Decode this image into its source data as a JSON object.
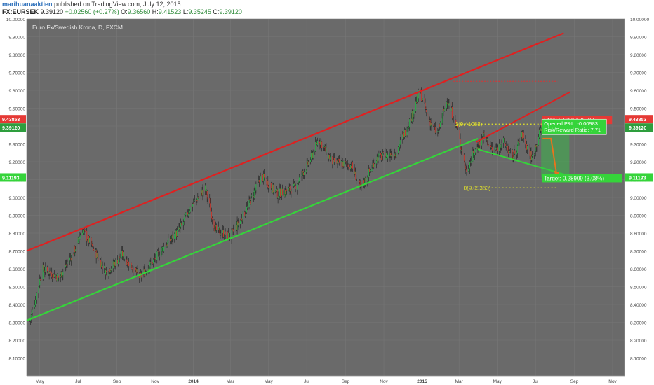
{
  "header": {
    "author": "marihuanaaktien",
    "published": "published on TradingView.com, July 12, 2015",
    "symbol": "FX:EURSEK",
    "last": "9.39120",
    "change": "+0.02560 (+0.27%)",
    "o_label": "O:",
    "o_val": "9.36560",
    "h_label": "H:",
    "h_val": "9.41523",
    "l_label": "L:",
    "l_val": "9.35245",
    "c_label": "C:",
    "c_val": "9.39120"
  },
  "chart_data": {
    "type": "line",
    "title": "Euro Fx/Swedish Krona, D, FXCM",
    "colors": {
      "background": "#6a6a6a",
      "up": "#2ea84a",
      "down": "#c23a30",
      "resistance": "#e02020",
      "support": "#35d43a",
      "fib": "#e6e62a"
    },
    "ylim": [
      8.0,
      10.0
    ],
    "y_ticks": [
      "8.10000",
      "8.20000",
      "8.30000",
      "8.40000",
      "8.50000",
      "8.60000",
      "8.70000",
      "8.80000",
      "8.90000",
      "9.00000",
      "9.10000",
      "9.20000",
      "9.30000",
      "9.40000",
      "9.50000",
      "9.60000",
      "9.70000",
      "9.80000",
      "9.90000",
      "10.00000"
    ],
    "x_ticks": [
      "May",
      "Jul",
      "Sep",
      "Nov",
      "2014",
      "Mar",
      "May",
      "Jul",
      "Sep",
      "Nov",
      "2015",
      "Mar",
      "May",
      "Jul",
      "Sep",
      "Nov"
    ],
    "x_range": [
      "2013-04-10",
      "2015-11-20"
    ],
    "x_tick_dates": [
      "2013-05-01",
      "2013-07-01",
      "2013-09-01",
      "2013-11-01",
      "2014-01-01",
      "2014-03-01",
      "2014-05-01",
      "2014-07-01",
      "2014-09-01",
      "2014-11-01",
      "2015-01-01",
      "2015-03-01",
      "2015-05-01",
      "2015-07-01",
      "2015-09-01",
      "2015-11-01"
    ],
    "price_anchors": [
      {
        "d": "2013-04-15",
        "p": 8.31
      },
      {
        "d": "2013-04-22",
        "p": 8.4
      },
      {
        "d": "2013-05-05",
        "p": 8.6
      },
      {
        "d": "2013-06-01",
        "p": 8.55
      },
      {
        "d": "2013-06-25",
        "p": 8.7
      },
      {
        "d": "2013-07-08",
        "p": 8.82
      },
      {
        "d": "2013-08-15",
        "p": 8.58
      },
      {
        "d": "2013-09-10",
        "p": 8.68
      },
      {
        "d": "2013-10-08",
        "p": 8.55
      },
      {
        "d": "2013-11-10",
        "p": 8.7
      },
      {
        "d": "2013-12-10",
        "p": 8.82
      },
      {
        "d": "2013-12-28",
        "p": 8.95
      },
      {
        "d": "2014-01-20",
        "p": 9.05
      },
      {
        "d": "2014-02-05",
        "p": 8.82
      },
      {
        "d": "2014-03-01",
        "p": 8.78
      },
      {
        "d": "2014-03-25",
        "p": 8.92
      },
      {
        "d": "2014-04-20",
        "p": 9.12
      },
      {
        "d": "2014-05-15",
        "p": 9.02
      },
      {
        "d": "2014-06-10",
        "p": 9.05
      },
      {
        "d": "2014-07-05",
        "p": 9.2
      },
      {
        "d": "2014-07-20",
        "p": 9.33
      },
      {
        "d": "2014-08-10",
        "p": 9.2
      },
      {
        "d": "2014-09-10",
        "p": 9.18
      },
      {
        "d": "2014-09-25",
        "p": 9.05
      },
      {
        "d": "2014-10-20",
        "p": 9.22
      },
      {
        "d": "2014-11-20",
        "p": 9.25
      },
      {
        "d": "2014-12-15",
        "p": 9.45
      },
      {
        "d": "2014-12-28",
        "p": 9.6
      },
      {
        "d": "2015-01-10",
        "p": 9.45
      },
      {
        "d": "2015-01-25",
        "p": 9.35
      },
      {
        "d": "2015-02-10",
        "p": 9.55
      },
      {
        "d": "2015-02-25",
        "p": 9.4
      },
      {
        "d": "2015-03-12",
        "p": 9.15
      },
      {
        "d": "2015-03-25",
        "p": 9.25
      },
      {
        "d": "2015-04-10",
        "p": 9.35
      },
      {
        "d": "2015-04-25",
        "p": 9.25
      },
      {
        "d": "2015-05-10",
        "p": 9.32
      },
      {
        "d": "2015-05-25",
        "p": 9.22
      },
      {
        "d": "2015-06-10",
        "p": 9.35
      },
      {
        "d": "2015-06-25",
        "p": 9.22
      },
      {
        "d": "2015-07-10",
        "p": 9.39
      }
    ],
    "price_note": "Approximate close path of the daily candles (estimated from the chart).",
    "resistance_line": [
      {
        "d": "2013-04-10",
        "p": 8.7
      },
      {
        "d": "2015-08-15",
        "p": 9.92
      }
    ],
    "support_line": [
      {
        "d": "2013-04-10",
        "p": 8.31
      },
      {
        "d": "2015-03-31",
        "p": 9.33
      }
    ],
    "channel_resistance": [
      {
        "d": "2015-03-28",
        "p": 9.31
      },
      {
        "d": "2015-08-25",
        "p": 9.59
      }
    ],
    "descending_support": [
      {
        "d": "2015-03-31",
        "p": 9.27
      },
      {
        "d": "2015-08-25",
        "p": 9.12
      }
    ],
    "dotted_top": [
      {
        "d": "2015-02-20",
        "p": 9.65
      },
      {
        "d": "2015-08-05",
        "p": 9.65
      }
    ],
    "fib_top_label": "1(9.41083)",
    "fib_top_price": 9.41083,
    "fib_bottom_label": "0(9.05363)",
    "fib_bottom_price": 9.05363,
    "fib_start": "2015-02-25",
    "fib_end": "2015-08-05",
    "position": {
      "entry": 9.3912,
      "stop_price": 9.43853,
      "target_price": 9.11193,
      "start": "2015-07-10",
      "end": "2015-08-24",
      "stop_label": "Stop: 0.03751 (0.4%)",
      "pnl_label": "Opened P&L: -0.00983",
      "rr_label": "Risk/Reward Ratio: 7.71",
      "target_label": "Target: 0.28909 (3.08%)"
    },
    "price_tags": [
      {
        "text": "9.43853",
        "value": 9.43853,
        "color": "#e53935"
      },
      {
        "text": "9.39120",
        "value": 9.3912,
        "color": "#2e9e3e"
      },
      {
        "text": "9.11193",
        "value": 9.11193,
        "color": "#35d43a"
      }
    ]
  }
}
